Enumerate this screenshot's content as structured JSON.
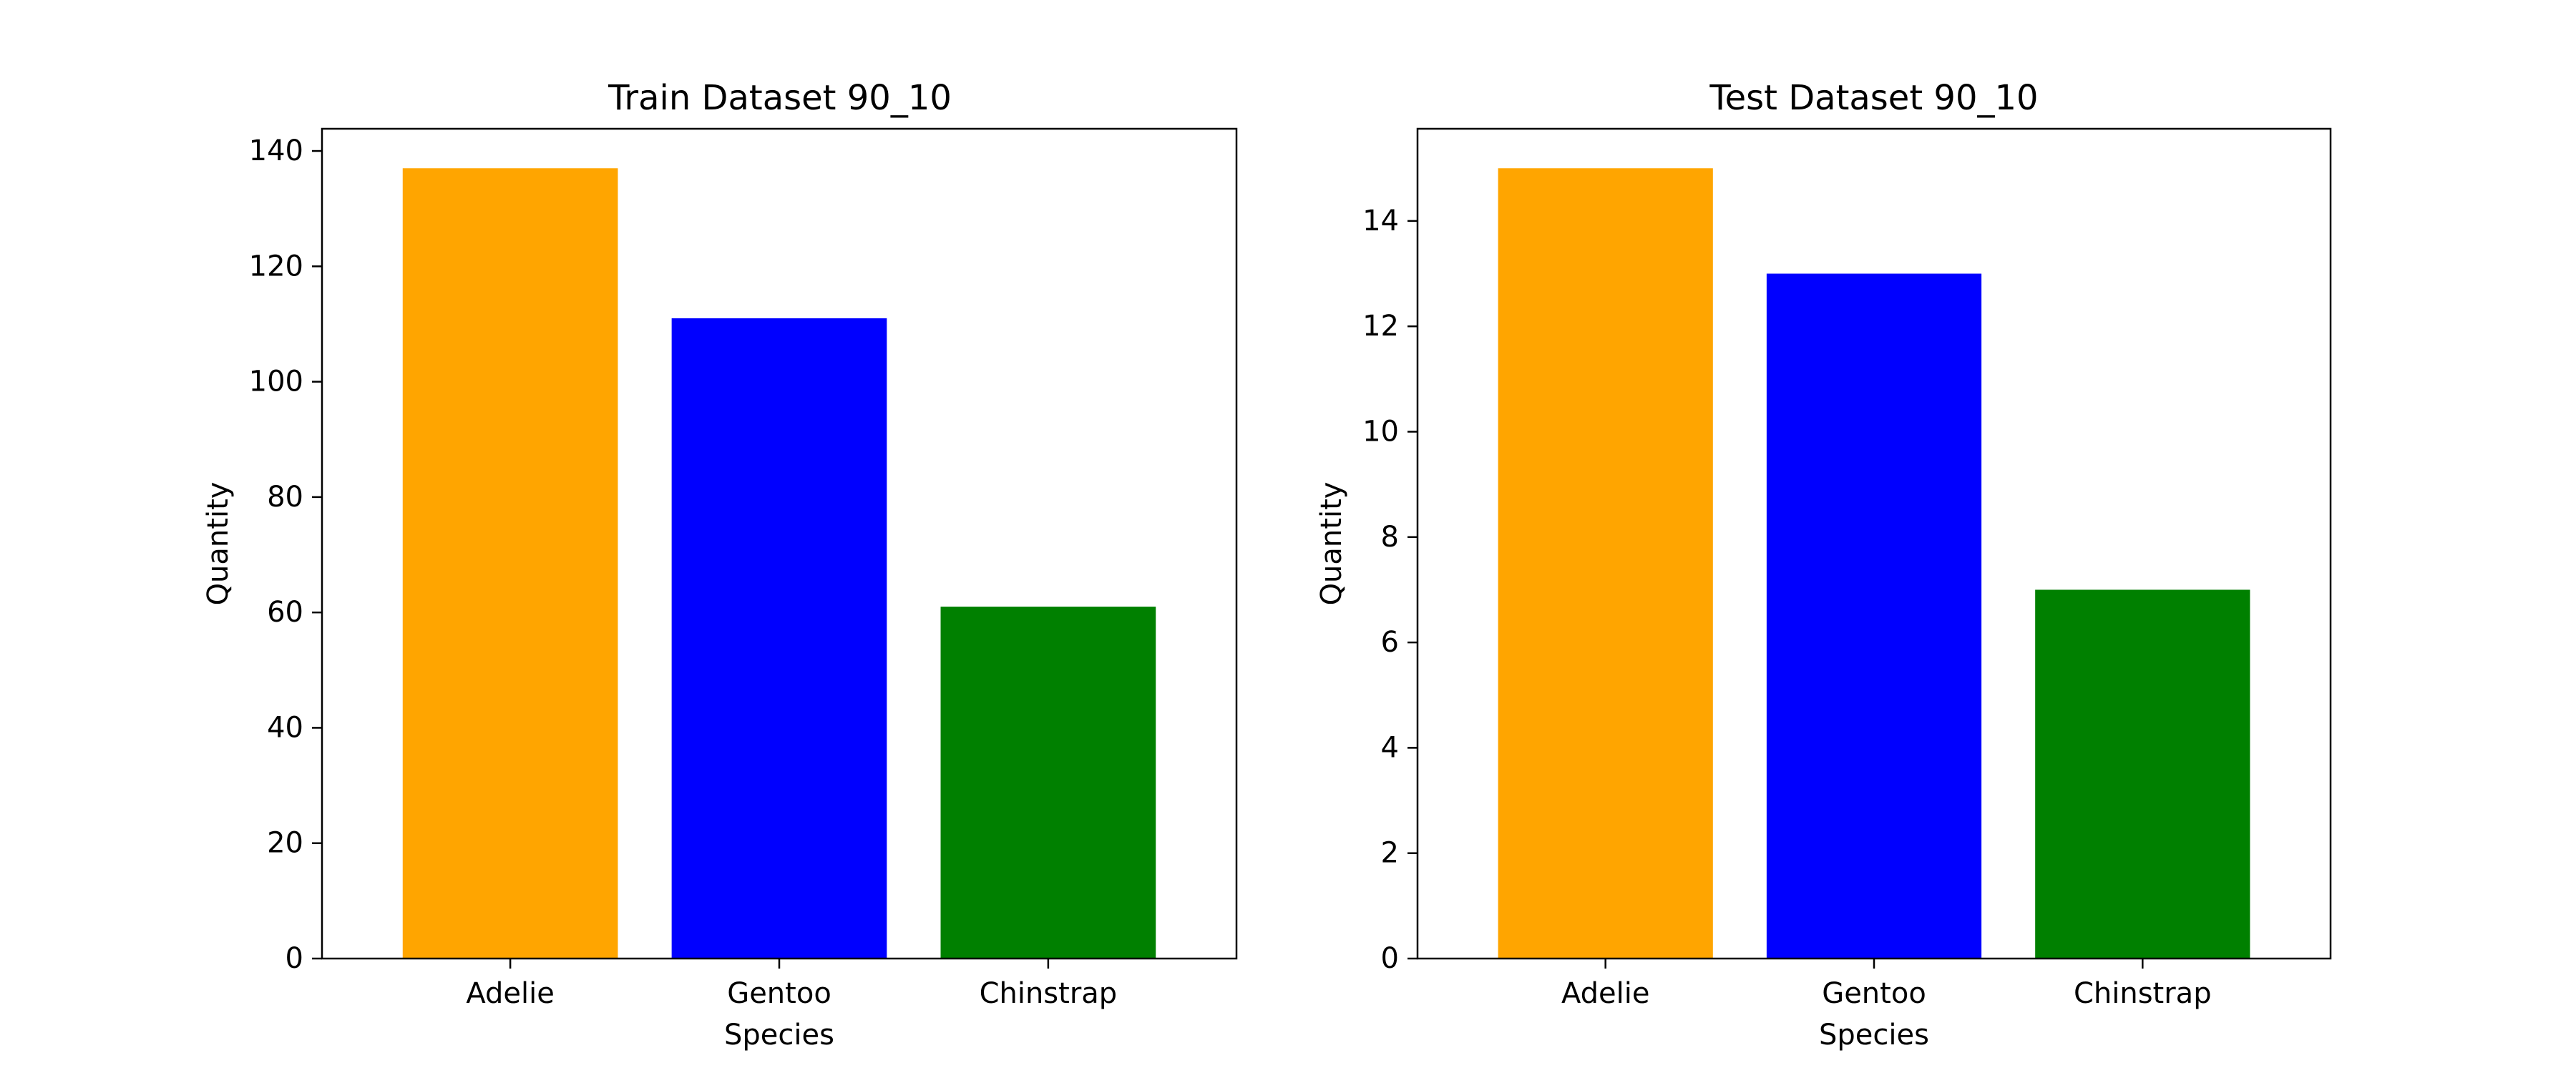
{
  "figure": {
    "background": "#ffffff"
  },
  "chart_data": [
    {
      "type": "bar",
      "title": "Train Dataset 90_10",
      "xlabel": "Species",
      "ylabel": "Quantity",
      "categories": [
        "Adelie",
        "Gentoo",
        "Chinstrap"
      ],
      "values": [
        137,
        111,
        61
      ],
      "colors": [
        "#ffa500",
        "#0000ff",
        "#008000"
      ],
      "ylim": [
        0,
        143.85
      ],
      "yticks": [
        0,
        20,
        40,
        60,
        80,
        100,
        120,
        140
      ],
      "grid": false,
      "legend": false
    },
    {
      "type": "bar",
      "title": "Test Dataset 90_10",
      "xlabel": "Species",
      "ylabel": "Quantity",
      "categories": [
        "Adelie",
        "Gentoo",
        "Chinstrap"
      ],
      "values": [
        15,
        13,
        7
      ],
      "colors": [
        "#ffa500",
        "#0000ff",
        "#008000"
      ],
      "ylim": [
        0,
        15.75
      ],
      "yticks": [
        0,
        2,
        4,
        6,
        8,
        10,
        12,
        14
      ],
      "grid": false,
      "legend": false
    }
  ]
}
